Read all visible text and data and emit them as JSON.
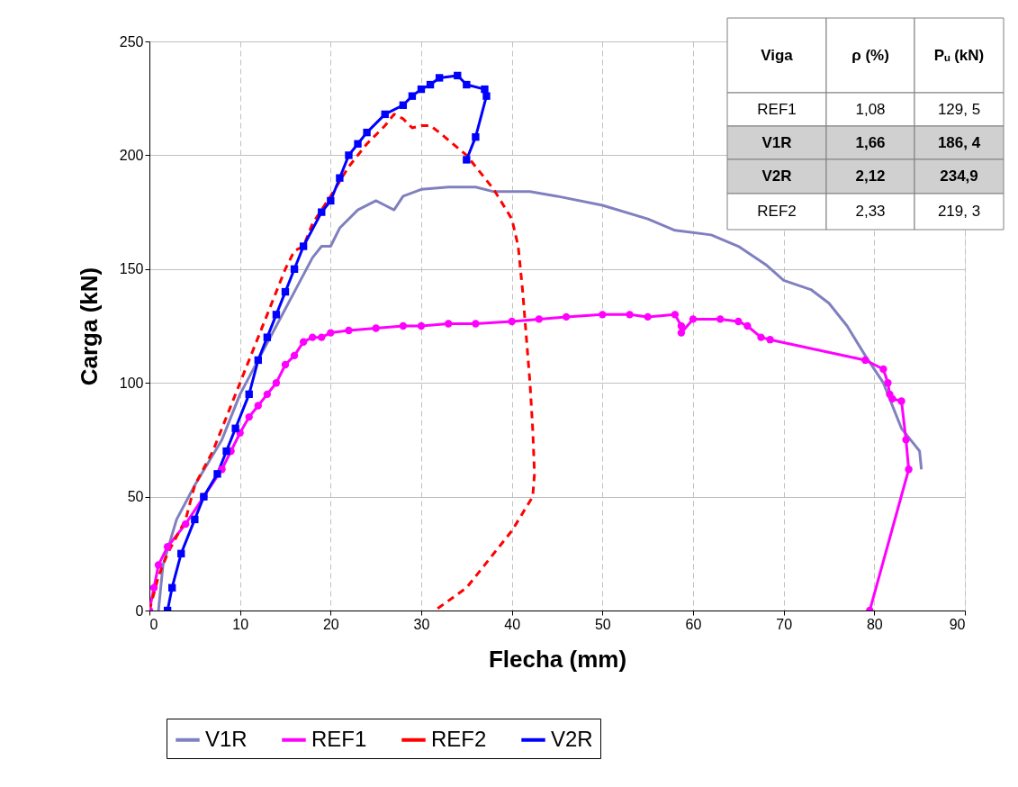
{
  "chart_data": {
    "type": "line",
    "xlabel": "Flecha (mm)",
    "ylabel": "Carga (kN)",
    "xlim": [
      0,
      90
    ],
    "ylim": [
      0,
      250
    ],
    "xticks": [
      0,
      10,
      20,
      30,
      40,
      50,
      60,
      70,
      80,
      90
    ],
    "yticks": [
      0,
      50,
      100,
      150,
      200,
      250
    ],
    "grid": true,
    "legend": "bottom",
    "series": [
      {
        "name": "V1R",
        "color": "#8080c0",
        "marker": "none",
        "line_style": "solid",
        "x": [
          1,
          1.5,
          3,
          5,
          8,
          10,
          12,
          14,
          16,
          18,
          19,
          20,
          21,
          23,
          25,
          26,
          27,
          28,
          30,
          33,
          36,
          38,
          42,
          45,
          50,
          55,
          58,
          62,
          65,
          68,
          70,
          73,
          75,
          77,
          79,
          81,
          82,
          83,
          84,
          85,
          85.2
        ],
        "values": [
          0,
          20,
          40,
          55,
          75,
          95,
          110,
          125,
          140,
          155,
          160,
          160,
          168,
          176,
          180,
          178,
          176,
          182,
          185,
          186,
          186,
          184,
          184,
          182,
          178,
          172,
          167,
          165,
          160,
          152,
          145,
          141,
          135,
          125,
          112,
          100,
          90,
          80,
          75,
          70,
          62
        ]
      },
      {
        "name": "REF1",
        "color": "#ff00ff",
        "marker": "circle",
        "line_style": "solid",
        "x": [
          0,
          0.5,
          1,
          2,
          4,
          6,
          8,
          9,
          10,
          11,
          12,
          13,
          14,
          15,
          16,
          17,
          18,
          19,
          20,
          22,
          25,
          28,
          30,
          33,
          36,
          40,
          43,
          46,
          50,
          53,
          55,
          58,
          58.7,
          58.7,
          60,
          63,
          65,
          66,
          67.5,
          68.5,
          79,
          81,
          81.5,
          81.7,
          82,
          83,
          83.5,
          83.8,
          79.5
        ],
        "values": [
          0,
          10,
          20,
          28,
          38,
          50,
          62,
          70,
          78,
          85,
          90,
          95,
          100,
          108,
          112,
          118,
          120,
          120,
          122,
          123,
          124,
          125,
          125,
          126,
          126,
          127,
          128,
          129,
          130,
          130,
          129,
          130,
          125,
          122,
          128,
          128,
          127,
          125,
          120,
          119,
          110,
          106,
          100,
          95,
          93,
          92,
          75,
          62,
          0
        ]
      },
      {
        "name": "REF2",
        "color": "#ff0000",
        "marker": "none",
        "line_style": "dashed",
        "x": [
          0,
          1,
          2,
          4,
          5,
          7,
          9,
          11,
          13,
          14,
          15,
          16,
          17,
          18,
          20,
          22,
          24,
          26,
          27,
          28,
          29,
          30,
          31,
          32,
          35,
          38,
          40,
          40.7,
          41.2,
          41.6,
          42,
          42.3,
          42.5,
          42.3,
          40,
          38,
          35,
          31.5
        ],
        "values": [
          0,
          15,
          25,
          40,
          55,
          70,
          90,
          110,
          130,
          140,
          150,
          158,
          160,
          170,
          182,
          195,
          205,
          213,
          218,
          216,
          212,
          213,
          213,
          210,
          200,
          185,
          172,
          160,
          140,
          120,
          100,
          80,
          60,
          50,
          35,
          25,
          10,
          0
        ]
      },
      {
        "name": "V2R",
        "color": "#0000ff",
        "marker": "square",
        "line_style": "solid",
        "x": [
          2,
          2.5,
          3.5,
          5,
          6,
          7.5,
          8.5,
          9.5,
          11,
          12,
          13,
          14,
          15,
          16,
          17,
          19,
          20,
          21,
          22,
          23,
          24,
          26,
          28,
          29,
          30,
          31,
          32,
          34,
          35,
          37,
          37.2,
          36,
          35
        ],
        "values": [
          0,
          10,
          25,
          40,
          50,
          60,
          70,
          80,
          95,
          110,
          120,
          130,
          140,
          150,
          160,
          175,
          180,
          190,
          200,
          205,
          210,
          218,
          222,
          226,
          229,
          231,
          234,
          235,
          231,
          229,
          226,
          208,
          198
        ]
      }
    ],
    "annotations": [
      "Viga",
      "ρ (%)",
      "Pᵤ (kN)",
      "REF1",
      "1,08",
      "129, 5",
      "V1R",
      "1,66",
      "186, 4",
      "V2R",
      "2,12",
      "234,9",
      "REF2",
      "2,33",
      "219, 3"
    ]
  }
}
